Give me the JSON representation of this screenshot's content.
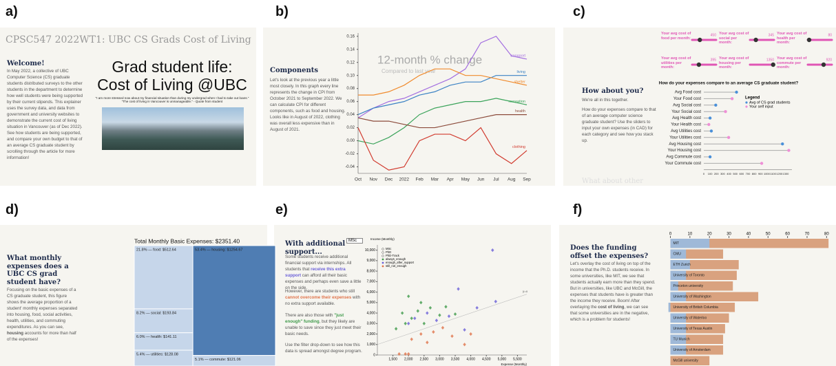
{
  "labels": [
    "a)",
    "b)",
    "c)",
    "d)",
    "e)",
    "f)"
  ],
  "panels": {
    "a": {
      "site_title": "CPSC547 2022WT1: UBC CS Grads Cost of Living",
      "heading": "Welcome!",
      "body": "In May 2022, a collective of UBC Computer Science (CS) graduate students distributed surveys to the other students in the department to determine how well students were being supported by their current stipends. This explainer uses the survey data, and data from government and university websites to demonstrate the current cost of living situation in Vancouver (as of Dec 2022). See how students are being supported, and compare your own budget to that of an average CS graduate student by scrolling through the article for more information!",
      "hero": [
        "Grad student life:",
        "Cost of Living @UBC"
      ],
      "quote": [
        "\"I am more stressed now about my financial situation than during my undergrad when I had to take out loans.\"",
        "\"The cost of living in Vancouver is unmanageable.\" - Quote from student"
      ]
    },
    "b": {
      "heading": "Components",
      "body": "Let's look at the previous year a little most closely. In this graph every line represents the change in CPI from October 2021 to September 2022. We can calculate CPI for different components, such as food and housing. Looks like in August of 2022, clothing was overall less expensive than in August of 2021."
    },
    "c": {
      "heading": "How about you?",
      "body": [
        "We're all in this together.",
        "How do your expenses compare to that of an average computer science graduate student? Use the sliders to input your own expenses (in CAD) for each category and see how you stack up."
      ],
      "sliders": [
        {
          "label": "Your avg cost of food per month:",
          "value": 450
        },
        {
          "label": "Your avg cost of social per month:",
          "value": 345
        },
        {
          "label": "Your avg cost of health per month:",
          "value": 80
        },
        {
          "label": "Your avg cost of utilities per month:",
          "value": 395
        },
        {
          "label": "Your avg cost of housing per month:",
          "value": 1350
        },
        {
          "label": "Your avg cost of commute per month:",
          "value": 920
        }
      ],
      "footer": "What about other"
    },
    "d": {
      "heading": "What monthly expenses does a UBC CS grad student have?",
      "body_pre": "Focusing on the basic expenses of a CS graduate student, this figure shows the average proportion of a student' monthly expenses separated into housing, food, social activities, health, utilities, and commuting expenditures. As you can see, ",
      "body_bold": "housing",
      "body_post": " accounts for more than half of the expenses!"
    },
    "e": {
      "heading": "With additional support...",
      "dropdown": "MSc",
      "p1": [
        "Some students receive additional financial support via internships. All students that ",
        "receive this extra support",
        " can afford all their basic expenses and perhaps even save a little on the side."
      ],
      "p2": [
        "However, there are students who still ",
        "cannot overcome their expenses",
        " with no extra support available."
      ],
      "p3": [
        "There are also those with ",
        "\"just enough\" funding",
        ", but they likely are unable to save since they just meet their basic needs."
      ],
      "p4": "Use the filter drop-down to see how this data is spread amongst degree program."
    },
    "f": {
      "heading": "Does the funding offset the expenses?",
      "body_pre": "Let's overlay the cost of living on top of the income that the Ph.D. students receive. In some universities, like MIT, we see that students actually earn more than they spend. But in universities, like UBC and McGill, the expenses that students have is greater than the income they receive. Boom! After overlaying the ",
      "body_bold": "cost of living",
      "body_post": ", we can see that some universities are in the negative, which is a problem for students!"
    }
  },
  "chart_data": [
    {
      "type": "line",
      "title": "12-month % change",
      "subtitle": "Compared to last year",
      "categories": [
        "Oct",
        "Nov",
        "Dec",
        "2022",
        "Feb",
        "Mar",
        "Apr",
        "May",
        "Jun",
        "Jul",
        "Aug",
        "Sep"
      ],
      "ylim": [
        -0.05,
        0.165
      ],
      "yticks": [
        -0.04,
        -0.02,
        {
          "value": 0,
          "label": "0.00"
        },
        0.02,
        0.04,
        0.06,
        0.08,
        {
          "value": 0.1,
          "label": "0.10"
        },
        0.12,
        0.14,
        0.16
      ],
      "series": [
        {
          "name": "transport",
          "color": "#a36ee0",
          "values": [
            0.035,
            0.05,
            0.06,
            0.065,
            0.075,
            0.085,
            0.095,
            0.11,
            0.15,
            0.16,
            0.13,
            0.125
          ]
        },
        {
          "name": "living",
          "color": "#3b82c4",
          "values": [
            0.04,
            0.05,
            0.055,
            0.06,
            0.07,
            0.075,
            0.085,
            0.09,
            0.09,
            0.1,
            0.1,
            0.1
          ]
        },
        {
          "name": "shelter",
          "color": "#f08a2c",
          "values": [
            0.07,
            0.07,
            0.075,
            0.085,
            0.1,
            0.11,
            0.11,
            0.1,
            0.1,
            0.095,
            0.09,
            0.085
          ]
        },
        {
          "name": "recreation",
          "color": "#3aa35a",
          "values": [
            0.0,
            -0.005,
            0.005,
            0.02,
            0.04,
            0.05,
            0.055,
            0.06,
            0.06,
            0.065,
            0.06,
            0.055
          ]
        },
        {
          "name": "health",
          "color": "#8b4a3a",
          "values": [
            0.035,
            0.03,
            0.03,
            0.025,
            0.02,
            0.02,
            0.025,
            0.03,
            0.035,
            0.04,
            0.04,
            0.04
          ]
        },
        {
          "name": "clothing",
          "color": "#d13a2e",
          "values": [
            0.02,
            -0.03,
            -0.045,
            -0.04,
            0.0,
            0.01,
            0.01,
            0.0,
            0.02,
            -0.02,
            -0.035,
            -0.015
          ]
        }
      ]
    },
    {
      "type": "dot",
      "title": "How do your expenses compare to an average CS graduate student?",
      "categories": [
        "Avg Food cost",
        "Your Food cost",
        "Avg Social cost",
        "Your Social cost",
        "Avg Health cost",
        "Your Health cost",
        "Avg Utilities cost",
        "Your Utilities cost",
        "Avg Housing cost",
        "Your Housing cost",
        "Avg Commute cost",
        "Your Commute cost"
      ],
      "legend_title": "Legend",
      "series": [
        {
          "name": "Avg of CS grad students",
          "color": "#4a90d9",
          "values": [
            520,
            null,
            190,
            null,
            100,
            null,
            120,
            null,
            1250,
            null,
            100,
            null
          ]
        },
        {
          "name": "Your self input",
          "color": "#ee8fd6",
          "values": [
            null,
            450,
            null,
            345,
            null,
            80,
            null,
            395,
            null,
            1350,
            null,
            920
          ]
        }
      ],
      "xlim": [
        0,
        1400
      ],
      "xticks": [
        0,
        100,
        200,
        300,
        400,
        500,
        600,
        700,
        800,
        900,
        1000,
        1100,
        1200,
        1300
      ]
    },
    {
      "type": "treemap",
      "title": "Total Monthly Basic Expenses: $2351.40",
      "categories": [
        "food",
        "social",
        "health",
        "utilities",
        "housing",
        "commute"
      ],
      "values": [
        512.64,
        193.84,
        141.11,
        128.08,
        1254.67,
        121.06
      ],
      "value_labels": [
        "21.8% — food: $512.64",
        "8.2% — social: $193.84",
        "6.0% — health: $141.11",
        "5.4% — utilities: $128.08",
        "53.4% — housing: $1254.67",
        "5.1% — commute: $121.06"
      ],
      "colors": [
        "#c6d6ea",
        "#c6d6ea",
        "#c6d6ea",
        "#c6d6ea",
        "#4f7db3",
        "#c6d6ea"
      ]
    },
    {
      "type": "scatter",
      "xlabel": "Expense (Monthly)",
      "ylabel": "Income (Monthly)",
      "annotation": "y=x",
      "shape_legend": [
        "MSc",
        "PhD",
        "PhD-Track"
      ],
      "xlim": [
        1000,
        5800
      ],
      "ylim": [
        0,
        10500
      ],
      "xticks": [
        {
          "value": 1500,
          "label": "1,500"
        },
        {
          "value": 2000,
          "label": "2,000"
        },
        {
          "value": 2500,
          "label": "2,500"
        },
        {
          "value": 3000,
          "label": "3,000"
        },
        {
          "value": 3500,
          "label": "3,500"
        },
        {
          "value": 4000,
          "label": "4,000"
        },
        {
          "value": 4500,
          "label": "4,500"
        },
        {
          "value": 5000,
          "label": "5,000"
        },
        {
          "value": 5500,
          "label": "5,500"
        }
      ],
      "yticks": [
        0,
        {
          "value": 1000,
          "label": "1,000"
        },
        {
          "value": 2000,
          "label": "2,000"
        },
        {
          "value": 3000,
          "label": "3,000"
        },
        {
          "value": 4000,
          "label": "4,000"
        },
        {
          "value": 5000,
          "label": "5,000"
        },
        {
          "value": 6000,
          "label": "6,000"
        },
        {
          "value": 7000,
          "label": "7,000"
        },
        {
          "value": 8000,
          "label": "8,000"
        },
        {
          "value": 9000,
          "label": "9,000"
        },
        {
          "value": 10000,
          "label": "10,000"
        }
      ],
      "series": [
        {
          "name": "always_enough",
          "color": "#3f9a4a",
          "x": [
            1600,
            1800,
            2000,
            2100,
            2300,
            2500,
            2700,
            3000,
            3200,
            3500,
            1900,
            2400
          ],
          "values": [
            2500,
            4000,
            5600,
            3500,
            4200,
            3000,
            4500,
            3800,
            4600,
            3900,
            3000,
            5000
          ]
        },
        {
          "name": "enough_after_support",
          "color": "#6a5fd8",
          "x": [
            2000,
            2200,
            2600,
            2900,
            3300,
            3600,
            4700,
            4800,
            4200,
            3800
          ],
          "values": [
            3000,
            3500,
            4000,
            3300,
            3700,
            6300,
            10000,
            5100,
            4500,
            2400
          ]
        },
        {
          "name": "still_not_enough",
          "color": "#e0734a",
          "x": [
            1700,
            1900,
            2100,
            2400,
            2800,
            3100,
            3400,
            3800,
            4000,
            2600,
            2000
          ],
          "values": [
            100,
            100,
            1500,
            2000,
            2200,
            2600,
            1800,
            1000,
            2000,
            1200,
            100
          ]
        }
      ]
    },
    {
      "type": "bar",
      "horizontal": true,
      "categories": [
        "MIT",
        "CMU",
        "ETH Zurich",
        "University of Toronto",
        "Princeton university",
        "University of Washington",
        "University of British Columbia",
        "University of Waterloo",
        "University of Texas Austin",
        "TU Munich",
        "University of Amsterdam",
        "McGill university"
      ],
      "series": [
        {
          "color": "#d9a27f",
          "values": [
            81,
            27,
            35,
            34,
            32,
            45,
            33,
            30,
            28,
            27,
            27,
            20
          ]
        },
        {
          "color": "#9fb9d8",
          "values": [
            20,
            8,
            10,
            8,
            4,
            8,
            -1,
            8,
            8,
            8,
            8,
            0
          ]
        }
      ],
      "xlim": [
        -3,
        82
      ],
      "xticks": [
        0,
        10,
        20,
        30,
        40,
        50,
        60,
        70,
        80
      ]
    }
  ]
}
